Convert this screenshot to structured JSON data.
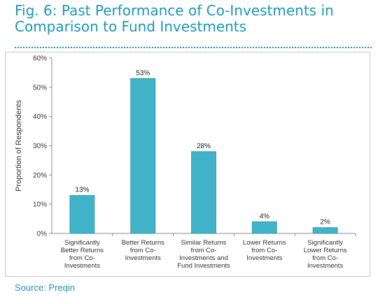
{
  "title": "Fig. 6: Past Performance of Co-Investments in Comparison to Fund Investments",
  "source": "Source: Preqin",
  "colors": {
    "accent": "#1a97b3",
    "bar": "#41b3c8",
    "bar_edge": "#2a95ab"
  },
  "chart_data": {
    "type": "bar",
    "title": "",
    "xlabel": "",
    "ylabel": "Proportion of Respondents",
    "ylim": [
      0,
      60
    ],
    "yticks": [
      0,
      10,
      20,
      30,
      40,
      50,
      60
    ],
    "ytick_labels": [
      "0%",
      "10%",
      "20%",
      "30%",
      "40%",
      "50%",
      "60%"
    ],
    "categories": [
      [
        "Significantly",
        "Better Returns",
        "from Co-",
        "Investments"
      ],
      [
        "Better Returns",
        "from Co-",
        "Investments"
      ],
      [
        "Similar Returns",
        "from Co-",
        "Investments and",
        "Fund Investments"
      ],
      [
        "Lower Returns",
        "from Co-",
        "Investments"
      ],
      [
        "Significantly",
        "Lower Returns",
        "from Co-",
        "Investments"
      ]
    ],
    "values": [
      13,
      53,
      28,
      4,
      2
    ],
    "data_labels": [
      "13%",
      "53%",
      "28%",
      "4%",
      "2%"
    ],
    "grid": false,
    "legend": "none"
  }
}
